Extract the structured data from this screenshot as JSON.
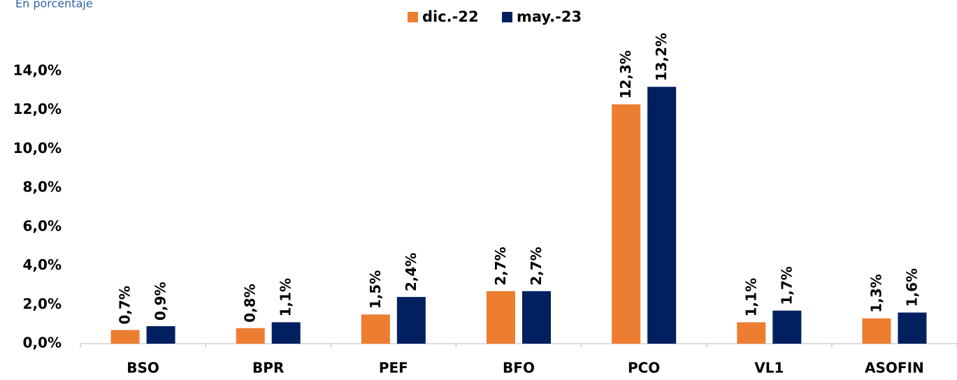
{
  "chart_data": {
    "type": "bar",
    "subtitle": "En porcentaje",
    "categories": [
      "BSO",
      "BPR",
      "PEF",
      "BFO",
      "PCO",
      "VL1",
      "ASOFIN"
    ],
    "series": [
      {
        "name": "dic.-22",
        "color": "#ed7d31",
        "values": [
          0.7,
          0.8,
          1.5,
          2.7,
          12.3,
          1.1,
          1.3
        ],
        "value_labels": [
          "0,7%",
          "0,8%",
          "1,5%",
          "2,7%",
          "12,3%",
          "1,1%",
          "1,3%"
        ]
      },
      {
        "name": "may.-23",
        "color": "#002060",
        "values": [
          0.9,
          1.1,
          2.4,
          2.7,
          13.2,
          1.7,
          1.6
        ],
        "value_labels": [
          "0,9%",
          "1,1%",
          "2,4%",
          "2,7%",
          "13,2%",
          "1,7%",
          "1,6%"
        ]
      }
    ],
    "ylim": [
      0,
      14
    ],
    "yticks": [
      {
        "value": 0,
        "label": "0,0%"
      },
      {
        "value": 2,
        "label": "2,0%"
      },
      {
        "value": 4,
        "label": "4,0%"
      },
      {
        "value": 6,
        "label": "6,0%"
      },
      {
        "value": 8,
        "label": "8,0%"
      },
      {
        "value": 10,
        "label": "10,0%"
      },
      {
        "value": 12,
        "label": "12,0%"
      },
      {
        "value": 14,
        "label": "14,0%"
      }
    ],
    "grid": false,
    "legend": "top"
  }
}
